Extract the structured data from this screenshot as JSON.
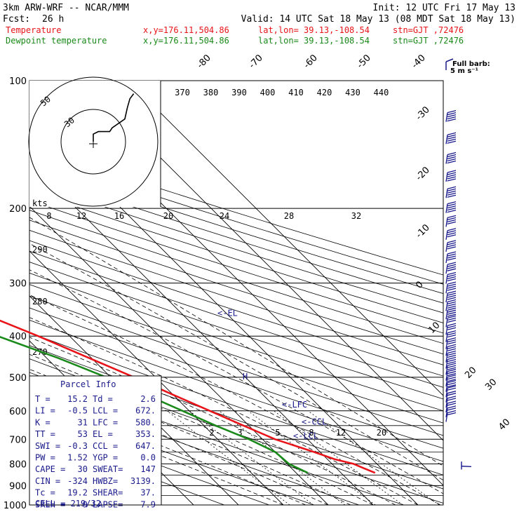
{
  "header": {
    "title": "3km ARW-WRF -- NCAR/MMM",
    "init": "Init: 12 UTC Fri 17 May 13",
    "fcst_label": "Fcst:",
    "fcst_value": "26 h",
    "valid": "Valid: 14 UTC Sat 18 May 13 (08 MDT Sat 18 May 13)",
    "temp_line": {
      "name": "Temperature",
      "xy": "x,y=176.11,504.86",
      "latlon": "lat,lon= 39.13,-108.54",
      "stn": "stn=GJT ,72476"
    },
    "dew_line": {
      "name": "Dewpoint temperature",
      "xy": "x,y=176.11,504.86",
      "latlon": "lat,lon= 39.13,-108.54",
      "stn": "stn=GJT ,72476"
    },
    "full_barb": "Full barb:",
    "barb_unit": "5 m s⁻¹"
  },
  "colors": {
    "temperature": "#e8141a",
    "dewpoint": "#1a8a1a",
    "wind_barbs": "#1a1a8c",
    "annotation": "#1a1a8c"
  },
  "chart_data": {
    "type": "skew-t",
    "pressure_levels": [
      100,
      200,
      300,
      400,
      500,
      600,
      700,
      800,
      900,
      1000
    ],
    "temperature_axis_labels": [
      "-80",
      "-70",
      "-60",
      "-50",
      "-40",
      "-30",
      "-20",
      "-10",
      "0",
      "10",
      "20",
      "30",
      "40"
    ],
    "theta_labels": [
      "370",
      "380",
      "390",
      "400",
      "410",
      "420",
      "430",
      "440"
    ],
    "theta_left_labels": [
      "290",
      "280",
      "270"
    ],
    "mixing_ratio_labels_top": [
      "8",
      "12",
      "16",
      "20",
      "24",
      "28",
      "32"
    ],
    "mixing_ratio_labels_bottom": [
      "2",
      "3",
      "5",
      "8",
      "12",
      "20"
    ],
    "hodograph": {
      "units": "kts",
      "ring_labels": [
        "50",
        "30"
      ],
      "trace": [
        [
          0,
          0
        ],
        [
          0,
          6
        ],
        [
          4,
          8
        ],
        [
          13,
          8
        ],
        [
          15,
          11
        ],
        [
          25,
          18
        ],
        [
          27,
          27
        ],
        [
          29,
          34
        ],
        [
          32,
          38
        ]
      ]
    },
    "series": [
      {
        "name": "Temperature",
        "points": [
          {
            "p": 840,
            "t": 17.6
          },
          {
            "p": 820,
            "t": 16.2
          },
          {
            "p": 800,
            "t": 14.8
          },
          {
            "p": 780,
            "t": 11.6
          },
          {
            "p": 750,
            "t": 8.6
          },
          {
            "p": 720,
            "t": 5.2
          },
          {
            "p": 700,
            "t": 2.8
          },
          {
            "p": 650,
            "t": -1.2
          },
          {
            "p": 600,
            "t": -5.4
          },
          {
            "p": 550,
            "t": -10.0
          },
          {
            "p": 500,
            "t": -14.8
          },
          {
            "p": 450,
            "t": -20.6
          },
          {
            "p": 400,
            "t": -27.0
          },
          {
            "p": 350,
            "t": -35.0
          },
          {
            "p": 300,
            "t": -44.2
          },
          {
            "p": 270,
            "t": -49.5
          },
          {
            "p": 250,
            "t": -52.0
          },
          {
            "p": 230,
            "t": -52.8
          },
          {
            "p": 200,
            "t": -53.5
          },
          {
            "p": 170,
            "t": -55.0
          },
          {
            "p": 150,
            "t": -56.0
          },
          {
            "p": 120,
            "t": -57.6
          },
          {
            "p": 110,
            "t": -58.5
          },
          {
            "p": 100,
            "t": -59.5
          }
        ]
      },
      {
        "name": "Dewpoint temperature",
        "points": [
          {
            "p": 840,
            "t": 2.6
          },
          {
            "p": 800,
            "t": 0.4
          },
          {
            "p": 750,
            "t": 0.0
          },
          {
            "p": 700,
            "t": -3.0
          },
          {
            "p": 650,
            "t": -7.4
          },
          {
            "p": 600,
            "t": -11.5
          },
          {
            "p": 550,
            "t": -16.0
          },
          {
            "p": 500,
            "t": -21.0
          },
          {
            "p": 450,
            "t": -27.5
          },
          {
            "p": 400,
            "t": -36.0
          },
          {
            "p": 370,
            "t": -44.0
          },
          {
            "p": 350,
            "t": -53.0
          },
          {
            "p": 320,
            "t": -56.5
          },
          {
            "p": 300,
            "t": -58.6
          },
          {
            "p": 270,
            "t": -61.5
          },
          {
            "p": 240,
            "t": -67.0
          },
          {
            "p": 210,
            "t": -73.0
          },
          {
            "p": 180,
            "t": -76.0
          },
          {
            "p": 150,
            "t": -77.5
          },
          {
            "p": 130,
            "t": -80.0
          },
          {
            "p": 110,
            "t": -82.5
          },
          {
            "p": 100,
            "t": -84.0
          }
        ]
      }
    ],
    "annotations": [
      {
        "label": "<-EL",
        "p": 353
      },
      {
        "label": "<-LFC",
        "p": 580
      },
      {
        "label": "<-CCL",
        "p": 647
      },
      {
        "label": "<-LCL",
        "p": 672
      }
    ],
    "parcel_info": {
      "title": "Parcel Info",
      "rows": [
        [
          "T  =",
          "15.2",
          "Td =",
          "2.6"
        ],
        [
          "LI =",
          "-0.5",
          "LCL =",
          "672."
        ],
        [
          "K  =",
          "31",
          "LFC =",
          "580."
        ],
        [
          "TT =",
          "53",
          "EL =",
          "353."
        ],
        [
          "SWI =",
          "-0.3",
          "CCL =",
          "647."
        ],
        [
          "PW =",
          "1.52",
          "YGP =",
          "0.0"
        ],
        [
          "CAPE =",
          "30",
          "SWEAT=",
          "147"
        ],
        [
          "CIN =",
          "-324",
          "HWBZ=",
          "3139."
        ],
        [
          "Tc =",
          "19.2",
          "SHEAR=",
          "37."
        ],
        [
          "SREH =",
          "9",
          "LAPSE=",
          "7.9"
        ]
      ],
      "cell": "CELL = 219/32"
    }
  }
}
